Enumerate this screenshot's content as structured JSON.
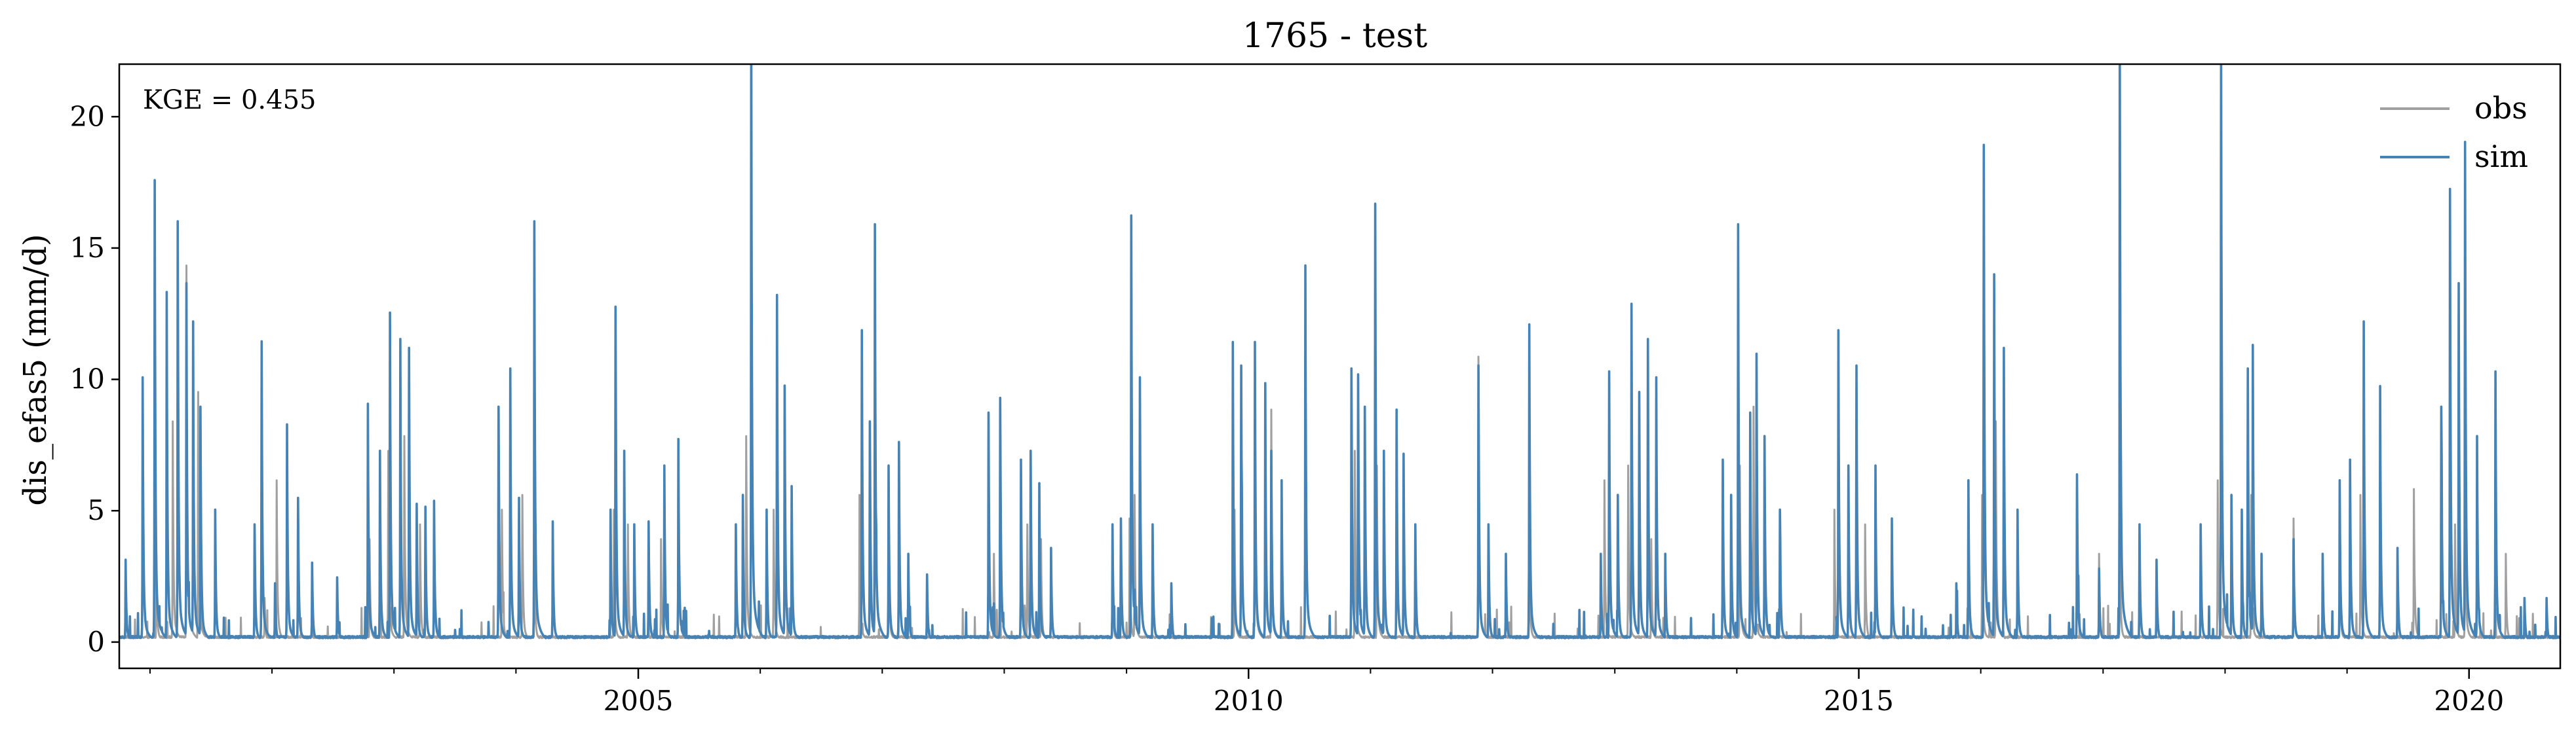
{
  "chart_data": {
    "type": "line",
    "title": "1765 - test",
    "xlabel": "",
    "ylabel": "dis_efas5 (mm/d)",
    "annotation": "KGE = 0.455",
    "xlim": [
      "2000-10-01",
      "2020-09-30"
    ],
    "ylim": [
      -1,
      22
    ],
    "x_ticks": [
      "2005",
      "2010",
      "2015",
      "2020"
    ],
    "y_ticks": [
      "0",
      "5",
      "10",
      "15",
      "20"
    ],
    "grid": false,
    "legend_position": "top-right",
    "baseline": 0.15,
    "series": [
      {
        "name": "obs",
        "color": "#a0a0a0",
        "peaks": [
          [
            "2001-01-20",
            3.0
          ],
          [
            "2001-03-10",
            7.5
          ],
          [
            "2001-04-20",
            12.8
          ],
          [
            "2001-05-25",
            8.5
          ],
          [
            "2001-12-10",
            1.5
          ],
          [
            "2002-01-15",
            5.5
          ],
          [
            "2002-10-20",
            3.5
          ],
          [
            "2002-12-15",
            6.5
          ],
          [
            "2003-02-01",
            7.0
          ],
          [
            "2003-03-20",
            4.0
          ],
          [
            "2003-11-20",
            4.5
          ],
          [
            "2004-01-20",
            5.0
          ],
          [
            "2004-02-25",
            3.5
          ],
          [
            "2004-10-20",
            4.5
          ],
          [
            "2004-12-01",
            4.0
          ],
          [
            "2005-03-10",
            3.5
          ],
          [
            "2005-11-20",
            7.0
          ],
          [
            "2006-02-10",
            4.5
          ],
          [
            "2006-10-25",
            5.0
          ],
          [
            "2007-01-20",
            4.0
          ],
          [
            "2007-12-01",
            3.0
          ],
          [
            "2008-03-10",
            4.0
          ],
          [
            "2008-04-20",
            3.5
          ],
          [
            "2008-11-20",
            2.5
          ],
          [
            "2009-01-10",
            4.2
          ],
          [
            "2009-01-25",
            5.0
          ],
          [
            "2009-11-20",
            4.5
          ],
          [
            "2010-01-20",
            8.0
          ],
          [
            "2010-03-10",
            7.9
          ],
          [
            "2010-11-15",
            6.5
          ],
          [
            "2011-01-20",
            6.0
          ],
          [
            "2011-11-20",
            9.7
          ],
          [
            "2012-04-20",
            4.0
          ],
          [
            "2012-12-01",
            5.5
          ],
          [
            "2013-02-10",
            6.0
          ],
          [
            "2013-04-20",
            3.5
          ],
          [
            "2014-01-10",
            6.0
          ],
          [
            "2014-02-20",
            8.0
          ],
          [
            "2014-10-20",
            4.5
          ],
          [
            "2015-01-20",
            4.0
          ],
          [
            "2016-01-05",
            5.0
          ],
          [
            "2016-02-15",
            7.5
          ],
          [
            "2016-12-20",
            3.0
          ],
          [
            "2017-02-20",
            4.0
          ],
          [
            "2017-12-10",
            5.5
          ],
          [
            "2018-03-20",
            5.0
          ],
          [
            "2018-07-25",
            4.2
          ],
          [
            "2018-12-10",
            3.5
          ],
          [
            "2019-02-10",
            5.0
          ],
          [
            "2019-07-20",
            5.2
          ],
          [
            "2019-11-20",
            4.0
          ],
          [
            "2019-12-20",
            6.0
          ],
          [
            "2020-04-20",
            3.0
          ]
        ]
      },
      {
        "name": "sim",
        "color": "#4682b4",
        "peaks": [
          [
            "2000-10-20",
            2.8
          ],
          [
            "2000-12-10",
            9.0
          ],
          [
            "2001-01-15",
            15.7
          ],
          [
            "2001-02-20",
            11.9
          ],
          [
            "2001-03-25",
            14.3
          ],
          [
            "2001-04-20",
            12.2
          ],
          [
            "2001-05-10",
            10.9
          ],
          [
            "2001-06-01",
            8.0
          ],
          [
            "2001-07-15",
            4.5
          ],
          [
            "2001-11-10",
            4.0
          ],
          [
            "2001-12-01",
            9.8
          ],
          [
            "2002-01-10",
            2.0
          ],
          [
            "2002-02-15",
            7.4
          ],
          [
            "2002-03-20",
            4.9
          ],
          [
            "2002-05-01",
            2.7
          ],
          [
            "2002-07-15",
            2.2
          ],
          [
            "2002-10-15",
            8.1
          ],
          [
            "2002-11-20",
            6.5
          ],
          [
            "2002-12-20",
            11.2
          ],
          [
            "2003-01-20",
            10.3
          ],
          [
            "2003-02-15",
            10.0
          ],
          [
            "2003-03-10",
            4.7
          ],
          [
            "2003-04-05",
            4.6
          ],
          [
            "2003-05-01",
            4.8
          ],
          [
            "2003-11-10",
            8.0
          ],
          [
            "2003-12-15",
            9.3
          ],
          [
            "2004-01-10",
            4.9
          ],
          [
            "2004-02-25",
            14.3
          ],
          [
            "2004-04-20",
            4.1
          ],
          [
            "2004-10-10",
            4.5
          ],
          [
            "2004-10-25",
            11.4
          ],
          [
            "2004-11-20",
            6.5
          ],
          [
            "2004-12-20",
            4.0
          ],
          [
            "2005-02-01",
            4.1
          ],
          [
            "2005-03-20",
            6.0
          ],
          [
            "2005-05-01",
            6.9
          ],
          [
            "2005-10-20",
            4.0
          ],
          [
            "2005-11-10",
            5.0
          ],
          [
            "2005-12-05",
            21.0
          ],
          [
            "2006-01-20",
            4.5
          ],
          [
            "2006-02-20",
            11.8
          ],
          [
            "2006-03-15",
            8.7
          ],
          [
            "2006-04-05",
            5.3
          ],
          [
            "2006-11-01",
            10.6
          ],
          [
            "2006-11-25",
            7.5
          ],
          [
            "2006-12-10",
            14.2
          ],
          [
            "2007-01-20",
            6.0
          ],
          [
            "2007-02-20",
            6.8
          ],
          [
            "2007-03-20",
            3.0
          ],
          [
            "2007-05-15",
            2.3
          ],
          [
            "2007-11-15",
            7.8
          ],
          [
            "2007-12-20",
            8.3
          ],
          [
            "2008-02-20",
            6.2
          ],
          [
            "2008-03-20",
            6.5
          ],
          [
            "2008-04-15",
            5.4
          ],
          [
            "2008-05-20",
            3.2
          ],
          [
            "2008-11-20",
            4.0
          ],
          [
            "2008-12-15",
            4.2
          ],
          [
            "2009-01-15",
            14.5
          ],
          [
            "2009-02-10",
            9.0
          ],
          [
            "2009-03-20",
            4.0
          ],
          [
            "2009-05-15",
            2.0
          ],
          [
            "2009-11-15",
            10.2
          ],
          [
            "2009-12-10",
            9.4
          ],
          [
            "2010-01-20",
            10.2
          ],
          [
            "2010-02-20",
            8.8
          ],
          [
            "2010-03-10",
            6.5
          ],
          [
            "2010-04-10",
            5.5
          ],
          [
            "2010-06-20",
            12.8
          ],
          [
            "2010-11-05",
            9.3
          ],
          [
            "2010-11-25",
            9.1
          ],
          [
            "2010-12-15",
            8.0
          ],
          [
            "2011-01-15",
            14.9
          ],
          [
            "2011-02-10",
            6.5
          ],
          [
            "2011-03-20",
            7.9
          ],
          [
            "2011-04-10",
            6.4
          ],
          [
            "2011-05-15",
            4.0
          ],
          [
            "2011-11-20",
            9.4
          ],
          [
            "2011-12-20",
            4.0
          ],
          [
            "2012-02-10",
            3.0
          ],
          [
            "2012-04-20",
            10.8
          ],
          [
            "2012-11-20",
            3.0
          ],
          [
            "2012-12-15",
            9.2
          ],
          [
            "2013-01-10",
            5.0
          ],
          [
            "2013-02-20",
            11.5
          ],
          [
            "2013-03-15",
            8.5
          ],
          [
            "2013-04-10",
            10.3
          ],
          [
            "2013-05-05",
            9.0
          ],
          [
            "2013-06-01",
            3.0
          ],
          [
            "2013-11-20",
            6.2
          ],
          [
            "2013-12-15",
            5.0
          ],
          [
            "2014-01-05",
            14.2
          ],
          [
            "2014-02-10",
            7.8
          ],
          [
            "2014-03-01",
            9.8
          ],
          [
            "2014-03-25",
            7.0
          ],
          [
            "2014-05-10",
            4.5
          ],
          [
            "2014-11-01",
            10.6
          ],
          [
            "2014-12-01",
            6.0
          ],
          [
            "2014-12-25",
            9.4
          ],
          [
            "2015-02-20",
            6.0
          ],
          [
            "2015-04-10",
            4.2
          ],
          [
            "2015-10-20",
            2.0
          ],
          [
            "2015-11-25",
            5.5
          ],
          [
            "2016-01-10",
            16.9
          ],
          [
            "2016-02-10",
            12.5
          ],
          [
            "2016-03-10",
            10.0
          ],
          [
            "2016-04-20",
            4.5
          ],
          [
            "2016-10-15",
            5.7
          ],
          [
            "2016-12-20",
            2.5
          ],
          [
            "2017-02-20",
            20.8
          ],
          [
            "2017-04-20",
            4.0
          ],
          [
            "2017-06-10",
            2.8
          ],
          [
            "2017-10-20",
            4.0
          ],
          [
            "2017-12-20",
            20.3
          ],
          [
            "2018-01-20",
            5.0
          ],
          [
            "2018-02-20",
            4.5
          ],
          [
            "2018-03-10",
            9.3
          ],
          [
            "2018-03-25",
            10.1
          ],
          [
            "2018-04-20",
            3.0
          ],
          [
            "2018-07-25",
            3.5
          ],
          [
            "2018-10-20",
            3.0
          ],
          [
            "2018-12-10",
            5.5
          ],
          [
            "2019-01-10",
            6.2
          ],
          [
            "2019-02-20",
            10.9
          ],
          [
            "2019-04-10",
            8.7
          ],
          [
            "2019-06-01",
            3.2
          ],
          [
            "2019-10-10",
            8.0
          ],
          [
            "2019-11-05",
            15.4
          ],
          [
            "2019-12-01",
            12.2
          ],
          [
            "2019-12-20",
            17.0
          ],
          [
            "2020-01-25",
            7.0
          ],
          [
            "2020-03-20",
            9.2
          ],
          [
            "2020-06-15",
            1.5
          ],
          [
            "2020-08-20",
            1.5
          ]
        ]
      }
    ]
  }
}
